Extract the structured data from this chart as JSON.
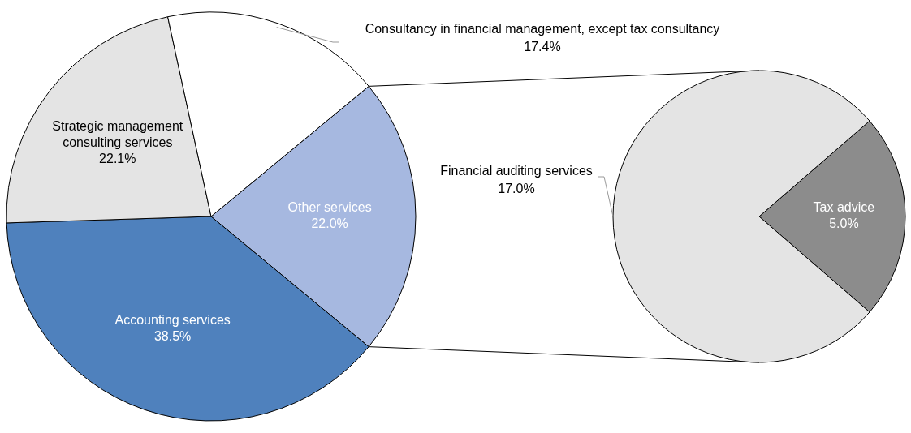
{
  "chart_data": [
    {
      "type": "pie",
      "categories": [
        "Other services",
        "Accounting services",
        "Strategic management consulting services",
        "Consultancy in financial management, except tax consultancy"
      ],
      "values": [
        22.0,
        38.5,
        22.1,
        17.4
      ],
      "colors": [
        "#a6b8e0",
        "#4f81bd",
        "#e4e4e4",
        "#ffffff"
      ],
      "value_labels": [
        "22.0%",
        "38.5%",
        "22.1%",
        "17.4%"
      ]
    },
    {
      "type": "pie",
      "categories": [
        "Tax advice",
        "Financial auditing services"
      ],
      "values": [
        5.0,
        17.0
      ],
      "colors": [
        "#8c8c8c",
        "#e4e4e4"
      ],
      "value_labels": [
        "5.0%",
        "17.0%"
      ]
    }
  ]
}
